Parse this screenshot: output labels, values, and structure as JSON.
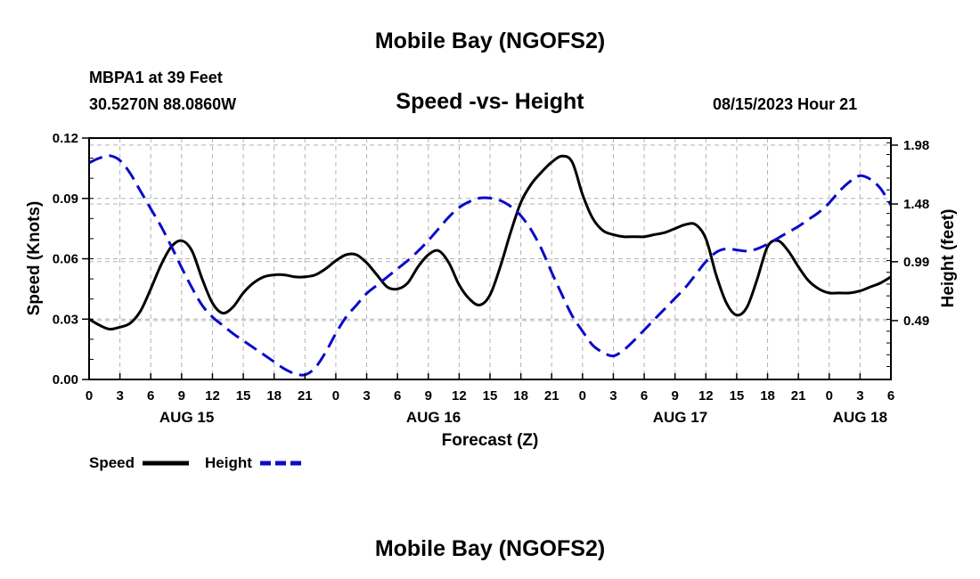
{
  "page": {
    "title": "Mobile Bay (NGOFS2)",
    "station": "MBPA1 at 39 Feet",
    "location": "30.5270N  88.0860W",
    "timestamp": "08/15/2023 Hour 21",
    "footer_title": "Mobile Bay (NGOFS2)"
  },
  "colors": {
    "speed": "#000000",
    "height": "#0a0ac8",
    "grid": "#b4b4b4"
  },
  "chart_data": {
    "type": "line",
    "title": "Speed -vs- Height",
    "xlabel": "Forecast (Z)",
    "ylabel": "Speed (Knots)",
    "y2label": "Height (feet)",
    "grid": true,
    "legend_position": "bottom-left",
    "x_range_hours": [
      0,
      78
    ],
    "x_tick_step_hours": 3,
    "x_tick_labels": [
      "0",
      "3",
      "6",
      "9",
      "12",
      "15",
      "18",
      "21",
      "0",
      "3",
      "6",
      "9",
      "12",
      "15",
      "18",
      "21",
      "0",
      "3",
      "6",
      "9",
      "12",
      "15",
      "18",
      "21",
      "0",
      "3",
      "6"
    ],
    "date_labels": [
      {
        "label": "AUG 15",
        "hour": 9.5
      },
      {
        "label": "AUG 16",
        "hour": 33.5
      },
      {
        "label": "AUG 17",
        "hour": 57.5
      },
      {
        "label": "AUG 18",
        "hour": 75
      }
    ],
    "ylim": [
      0,
      0.12
    ],
    "y_ticks": [
      {
        "value": 0,
        "label": "0.00"
      },
      {
        "value": 0.03,
        "label": "0.03"
      },
      {
        "value": 0.06,
        "label": "0.06"
      },
      {
        "value": 0.09,
        "label": "0.09"
      },
      {
        "value": 0.12,
        "label": "0.12"
      }
    ],
    "y2lim": [
      -0.01,
      2.04
    ],
    "y2_ticks": [
      {
        "value": 0.49,
        "label": "0.49"
      },
      {
        "value": 0.99,
        "label": "0.99"
      },
      {
        "value": 1.48,
        "label": "1.48"
      },
      {
        "value": 1.98,
        "label": "1.98"
      }
    ],
    "series": [
      {
        "name": "Speed",
        "axis": "left",
        "style": "solid",
        "x": [
          0,
          1,
          2,
          3,
          4,
          5,
          6,
          7,
          8,
          9,
          10,
          11,
          12,
          13,
          14,
          15,
          16,
          17,
          18,
          19,
          20,
          21,
          22,
          23,
          24,
          25,
          26,
          27,
          28,
          29,
          30,
          31,
          32,
          33,
          34,
          35,
          36,
          37,
          38,
          39,
          40,
          41,
          42,
          43,
          44,
          45,
          46,
          47,
          48,
          49,
          50,
          51,
          52,
          53,
          54,
          55,
          56,
          57,
          58,
          59,
          60,
          61,
          62,
          63,
          64,
          65,
          66,
          67,
          68,
          69,
          70,
          71,
          72,
          73,
          74,
          75,
          76,
          77,
          78
        ],
        "values": [
          0.03,
          0.027,
          0.025,
          0.026,
          0.028,
          0.034,
          0.045,
          0.057,
          0.066,
          0.069,
          0.064,
          0.05,
          0.038,
          0.033,
          0.036,
          0.043,
          0.048,
          0.051,
          0.052,
          0.052,
          0.051,
          0.051,
          0.052,
          0.055,
          0.059,
          0.062,
          0.062,
          0.058,
          0.052,
          0.046,
          0.045,
          0.048,
          0.056,
          0.062,
          0.064,
          0.058,
          0.047,
          0.04,
          0.037,
          0.042,
          0.056,
          0.073,
          0.088,
          0.097,
          0.103,
          0.108,
          0.111,
          0.108,
          0.092,
          0.08,
          0.074,
          0.072,
          0.071,
          0.071,
          0.071,
          0.072,
          0.073,
          0.075,
          0.077,
          0.077,
          0.07,
          0.052,
          0.038,
          0.032,
          0.036,
          0.05,
          0.066,
          0.069,
          0.064,
          0.056,
          0.049,
          0.045,
          0.043,
          0.043,
          0.043,
          0.044,
          0.046,
          0.048,
          0.051
        ]
      },
      {
        "name": "Height",
        "axis": "right",
        "style": "dashed",
        "x": [
          0,
          1,
          2,
          3,
          4,
          5,
          6,
          7,
          8,
          9,
          10,
          11,
          12,
          13,
          14,
          15,
          16,
          17,
          18,
          19,
          20,
          21,
          22,
          23,
          24,
          25,
          26,
          27,
          28,
          29,
          30,
          31,
          32,
          33,
          34,
          35,
          36,
          37,
          38,
          39,
          40,
          41,
          42,
          43,
          44,
          45,
          46,
          47,
          48,
          49,
          50,
          51,
          52,
          53,
          54,
          55,
          56,
          57,
          58,
          59,
          60,
          61,
          62,
          63,
          64,
          65,
          66,
          67,
          68,
          69,
          70,
          71,
          72,
          73,
          74,
          75,
          76,
          77,
          78
        ],
        "values": [
          1.83,
          1.87,
          1.89,
          1.85,
          1.74,
          1.59,
          1.44,
          1.29,
          1.12,
          0.94,
          0.77,
          0.62,
          0.52,
          0.45,
          0.38,
          0.32,
          0.26,
          0.2,
          0.14,
          0.08,
          0.04,
          0.03,
          0.09,
          0.22,
          0.38,
          0.52,
          0.62,
          0.72,
          0.79,
          0.86,
          0.93,
          1.0,
          1.08,
          1.17,
          1.27,
          1.37,
          1.45,
          1.5,
          1.53,
          1.53,
          1.51,
          1.46,
          1.38,
          1.26,
          1.1,
          0.9,
          0.71,
          0.53,
          0.4,
          0.28,
          0.22,
          0.19,
          0.24,
          0.32,
          0.41,
          0.5,
          0.59,
          0.68,
          0.77,
          0.88,
          0.99,
          1.07,
          1.1,
          1.09,
          1.08,
          1.1,
          1.14,
          1.19,
          1.24,
          1.29,
          1.35,
          1.41,
          1.49,
          1.59,
          1.67,
          1.72,
          1.69,
          1.61,
          1.47
        ]
      }
    ]
  }
}
